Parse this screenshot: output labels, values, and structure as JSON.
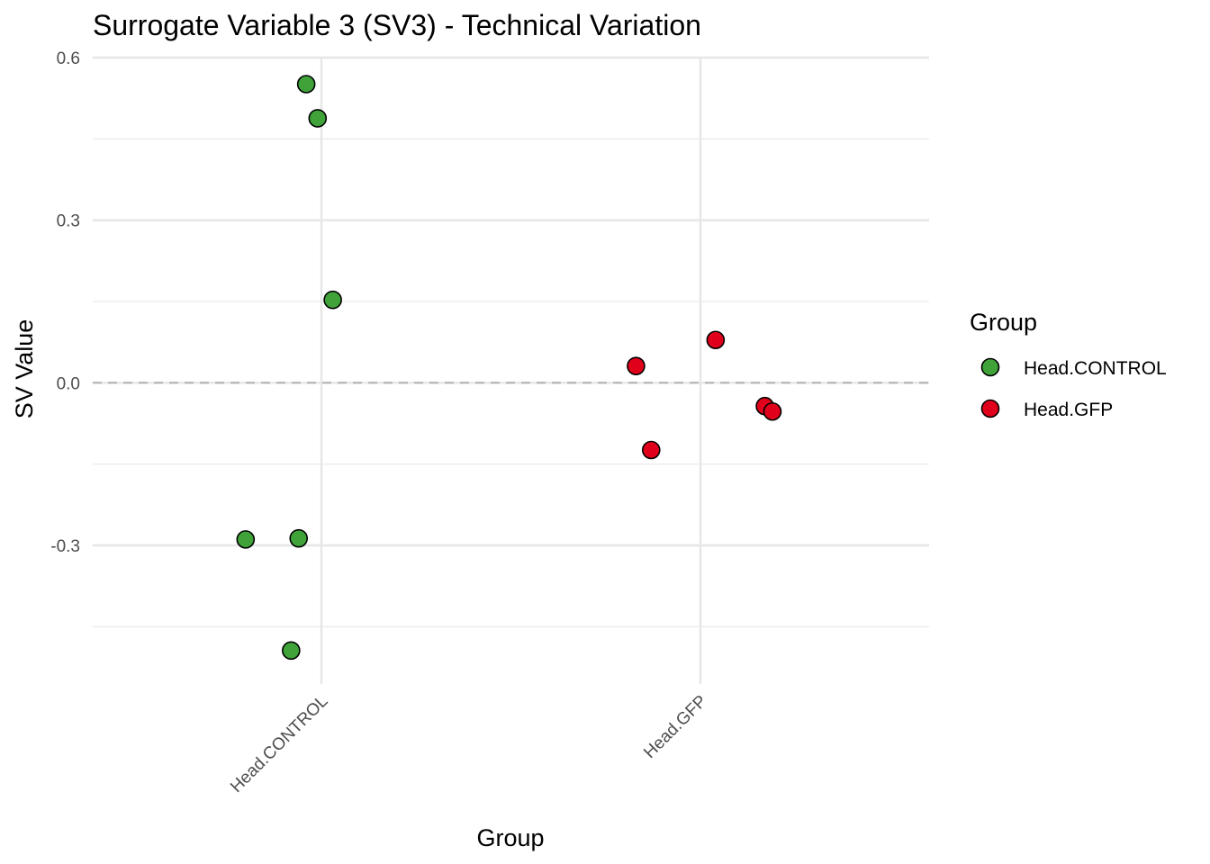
{
  "chart_data": {
    "type": "scatter",
    "title": "Surrogate Variable 3 (SV3) - Technical Variation",
    "xlabel": "Group",
    "ylabel": "SV Value",
    "categories": [
      "Head.CONTROL",
      "Head.GFP"
    ],
    "y_ticks": [
      -0.3,
      0.0,
      0.3,
      0.6
    ],
    "y_tick_labels": [
      "-0.3",
      "0.0",
      "0.3",
      "0.6"
    ],
    "ylim": [
      -0.55,
      0.6
    ],
    "grid": true,
    "reference_line": {
      "y": 0.0,
      "style": "dashed",
      "color": "#b3b3b3"
    },
    "legend": {
      "title": "Group",
      "position": "right",
      "entries": [
        {
          "label": "Head.CONTROL",
          "color": "#3fa33a"
        },
        {
          "label": "Head.GFP",
          "color": "#e0001b"
        }
      ]
    },
    "series": [
      {
        "name": "Head.CONTROL",
        "color": "#3fa33a",
        "category": "Head.CONTROL",
        "jitter": [
          -0.04,
          -0.01,
          0.03,
          -0.2,
          -0.06,
          -0.08
        ],
        "values": [
          0.551,
          0.488,
          0.153,
          -0.289,
          -0.287,
          -0.494
        ]
      },
      {
        "name": "Head.GFP",
        "color": "#e0001b",
        "category": "Head.GFP",
        "jitter": [
          0.04,
          -0.17,
          0.17,
          -0.13,
          0.19
        ],
        "values": [
          0.079,
          0.031,
          -0.043,
          -0.124,
          -0.053
        ]
      }
    ]
  }
}
